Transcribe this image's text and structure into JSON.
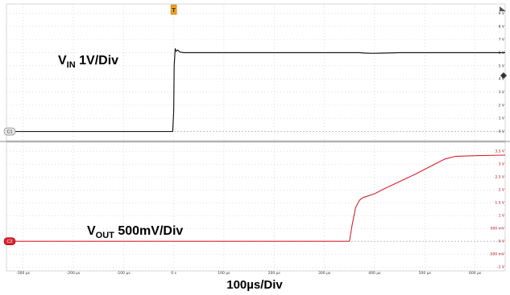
{
  "chart_data": [
    {
      "type": "line",
      "channel": "C1",
      "annotation": "V",
      "annotation_sub": "IN",
      "annotation_rest": " 1V/Div",
      "color": "#1a1a1a",
      "y_ticks": [
        "9 V",
        "8 V",
        "7 V",
        "6 V",
        "5 V",
        "4 V",
        "3 V",
        "2 V",
        "1 V",
        "0 V"
      ],
      "y_tick_values": [
        9,
        8,
        7,
        6,
        5,
        4,
        3,
        2,
        1,
        0
      ],
      "ylim": [
        -0.7,
        9.7
      ],
      "x": [
        -320,
        -2,
        0,
        1,
        3,
        5,
        8,
        12,
        20,
        120,
        220,
        370,
        380,
        395,
        420,
        450,
        520,
        660
      ],
      "y": [
        0,
        0,
        1.5,
        5.0,
        6.3,
        6.1,
        6.2,
        6.05,
        6.0,
        6.0,
        6.0,
        6.0,
        5.97,
        5.95,
        5.97,
        6.0,
        6.0,
        6.0
      ]
    },
    {
      "type": "line",
      "channel": "C2",
      "annotation": "V",
      "annotation_sub": "OUT",
      "annotation_rest": " 500mV/Div",
      "color": "#d8222f",
      "y_ticks": [
        "3.5 V",
        "3 V",
        "2.5 V",
        "2 V",
        "1.5 V",
        "1 V",
        "500 mV",
        "0 V",
        "-500 mV",
        "-1 V"
      ],
      "y_tick_values": [
        3.5,
        3,
        2.5,
        2,
        1.5,
        1,
        0.5,
        0,
        -0.5,
        -1
      ],
      "ylim": [
        -1.15,
        3.85
      ],
      "x": [
        -320,
        350,
        355,
        362,
        370,
        377,
        385,
        400,
        420,
        480,
        540,
        560,
        600,
        660
      ],
      "y": [
        0,
        0,
        0.6,
        1.3,
        1.6,
        1.7,
        1.75,
        1.85,
        2.05,
        2.6,
        3.2,
        3.3,
        3.33,
        3.35
      ]
    }
  ],
  "x_ticks": [
    "-300 µs",
    "-200 µs",
    "-100 µs",
    "0 s",
    "100 µs",
    "200 µs",
    "300 µs",
    "400 µs",
    "500 µs",
    "600 µs"
  ],
  "x_tick_values": [
    -300,
    -200,
    -100,
    0,
    100,
    200,
    300,
    400,
    500,
    600
  ],
  "xlim": [
    -333,
    660
  ],
  "x_label": "100µs/Div",
  "trigger_marker": "T",
  "ch1_badge": "C1",
  "ch2_badge": "C2",
  "grid": true
}
